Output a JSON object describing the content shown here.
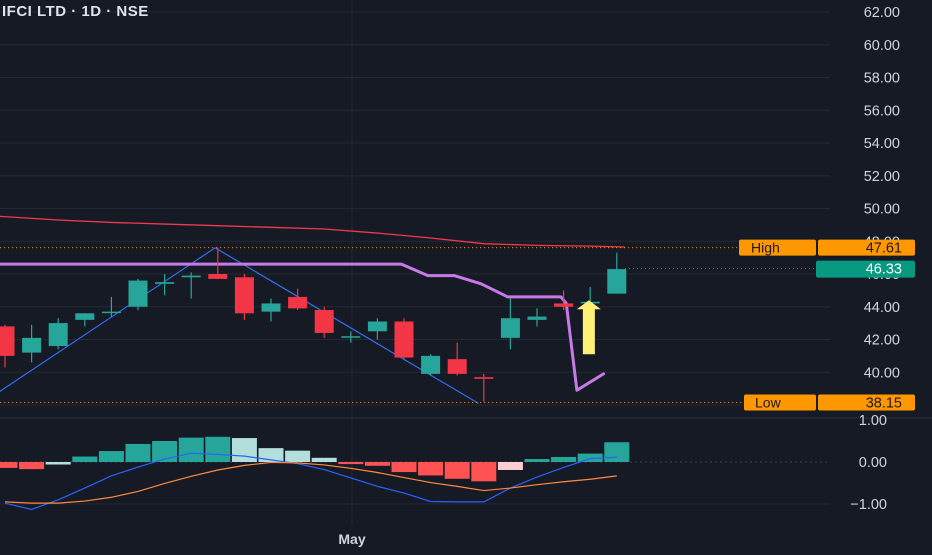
{
  "header": {
    "title": "IFCI LTD · 1D · NSE"
  },
  "colors": {
    "background": "#161a25",
    "up": "#26a69a",
    "down": "#f23645",
    "grid": "#242833",
    "axis_text": "#d1d4dc",
    "ma_red": "#f0394b",
    "purple": "#c879e8",
    "blue_line": "#2f6fe8",
    "arrow": "#fff176",
    "macd": "#2962ff",
    "signal": "#ff8a3d",
    "label_orange": "#ff9800",
    "price_label_green": "#089981"
  },
  "chart_data": [
    {
      "type": "candlestick",
      "panel": "price",
      "x_label": "May",
      "y_ticks": [
        "62.00",
        "60.00",
        "58.00",
        "56.00",
        "54.00",
        "52.00",
        "50.00",
        "48.00",
        "46.00",
        "44.00",
        "42.00",
        "40.00",
        "38.00"
      ],
      "ylim": [
        37.5,
        62.5
      ],
      "candles": [
        {
          "o": 42.8,
          "h": 42.9,
          "l": 40.3,
          "c": 41.0
        },
        {
          "o": 41.2,
          "h": 42.9,
          "l": 40.6,
          "c": 42.1
        },
        {
          "o": 41.6,
          "h": 43.3,
          "l": 41.4,
          "c": 43.0
        },
        {
          "o": 43.2,
          "h": 43.6,
          "l": 42.8,
          "c": 43.6
        },
        {
          "o": 43.7,
          "h": 44.6,
          "l": 43.4,
          "c": 43.7
        },
        {
          "o": 44.0,
          "h": 45.7,
          "l": 43.8,
          "c": 45.6
        },
        {
          "o": 45.4,
          "h": 46.0,
          "l": 44.7,
          "c": 45.5
        },
        {
          "o": 45.8,
          "h": 46.1,
          "l": 44.5,
          "c": 45.9
        },
        {
          "o": 46.0,
          "h": 47.6,
          "l": 45.7,
          "c": 45.7
        },
        {
          "o": 45.8,
          "h": 46.0,
          "l": 43.2,
          "c": 43.6
        },
        {
          "o": 43.7,
          "h": 44.5,
          "l": 43.1,
          "c": 44.2
        },
        {
          "o": 44.6,
          "h": 45.1,
          "l": 43.8,
          "c": 43.9
        },
        {
          "o": 43.8,
          "h": 44.0,
          "l": 42.1,
          "c": 42.4
        },
        {
          "o": 42.2,
          "h": 42.5,
          "l": 41.8,
          "c": 42.2
        },
        {
          "o": 42.5,
          "h": 43.3,
          "l": 42.0,
          "c": 43.1
        },
        {
          "o": 43.1,
          "h": 43.3,
          "l": 40.8,
          "c": 40.9
        },
        {
          "o": 39.9,
          "h": 41.1,
          "l": 39.8,
          "c": 41.0
        },
        {
          "o": 40.8,
          "h": 41.8,
          "l": 39.8,
          "c": 39.9
        },
        {
          "o": 39.7,
          "h": 39.9,
          "l": 38.2,
          "c": 39.6
        },
        {
          "o": 42.1,
          "h": 44.5,
          "l": 41.4,
          "c": 43.3
        },
        {
          "o": 43.2,
          "h": 43.9,
          "l": 42.8,
          "c": 43.4
        },
        {
          "o": 44.2,
          "h": 45.0,
          "l": 43.8,
          "c": 44.0
        },
        {
          "o": 44.3,
          "h": 45.2,
          "l": 44.1,
          "c": 44.3
        },
        {
          "o": 44.8,
          "h": 47.3,
          "l": 44.8,
          "c": 46.3
        }
      ],
      "ma_line": {
        "x": [
          -1,
          2,
          4,
          6,
          8,
          10,
          12,
          14,
          16,
          18,
          20,
          22,
          23.3
        ],
        "y": [
          49.6,
          49.3,
          49.15,
          49.05,
          48.95,
          48.85,
          48.75,
          48.5,
          48.2,
          47.85,
          47.75,
          47.7,
          47.65
        ]
      },
      "zigzag": {
        "x": [
          -0.5,
          7.9,
          17.8
        ],
        "y": [
          38.5,
          47.6,
          38.1
        ]
      },
      "drawing": {
        "x": [
          -1,
          14.9,
          15.9,
          16.9,
          17.9,
          18.9,
          20.0,
          20.9,
          21.1,
          21.5,
          22.5
        ],
        "y": [
          46.6,
          46.6,
          45.9,
          45.9,
          45.4,
          44.6,
          44.6,
          44.6,
          44.2,
          38.9,
          39.9
        ]
      },
      "arrow": {
        "x": 21.95,
        "y_from": 41.1,
        "y_to": 44.4
      },
      "high_level": {
        "label": "High",
        "value": "47.61",
        "y": 47.61
      },
      "low_level": {
        "label": "Low",
        "value": "38.15",
        "y": 38.15
      },
      "last_price": {
        "value": "46.33",
        "y": 46.33
      }
    },
    {
      "type": "histogram",
      "panel": "macd",
      "y_ticks": [
        "1.00",
        "0.00",
        "−1.00"
      ],
      "ylim": [
        -1.25,
        1.1
      ],
      "histogram": [
        -0.14,
        -0.17,
        -0.06,
        0.13,
        0.26,
        0.43,
        0.5,
        0.58,
        0.6,
        0.57,
        0.33,
        0.27,
        0.1,
        -0.05,
        -0.09,
        -0.24,
        -0.32,
        -0.4,
        -0.46,
        -0.19,
        0.07,
        0.12,
        0.2,
        0.47
      ],
      "histogram_colors": [
        "down",
        "down",
        "lightup",
        "up",
        "up",
        "up",
        "up",
        "up",
        "up",
        "lightup",
        "lightup",
        "lightup",
        "lightup",
        "down",
        "down",
        "down",
        "down",
        "down",
        "down",
        "lightdown",
        "up",
        "up",
        "up",
        "up"
      ],
      "macd_line": [
        -0.98,
        -1.13,
        -0.9,
        -0.62,
        -0.33,
        -0.12,
        0.07,
        0.21,
        0.18,
        0.14,
        0.05,
        -0.04,
        -0.18,
        -0.38,
        -0.58,
        -0.74,
        -0.94,
        -0.95,
        -0.95,
        -0.62,
        -0.36,
        -0.13,
        0.08,
        0.11
      ],
      "signal_line": [
        -0.95,
        -0.98,
        -0.98,
        -0.93,
        -0.84,
        -0.7,
        -0.51,
        -0.34,
        -0.19,
        -0.08,
        -0.01,
        -0.02,
        -0.07,
        -0.15,
        -0.25,
        -0.37,
        -0.49,
        -0.58,
        -0.68,
        -0.62,
        -0.54,
        -0.47,
        -0.41,
        -0.33
      ]
    }
  ]
}
